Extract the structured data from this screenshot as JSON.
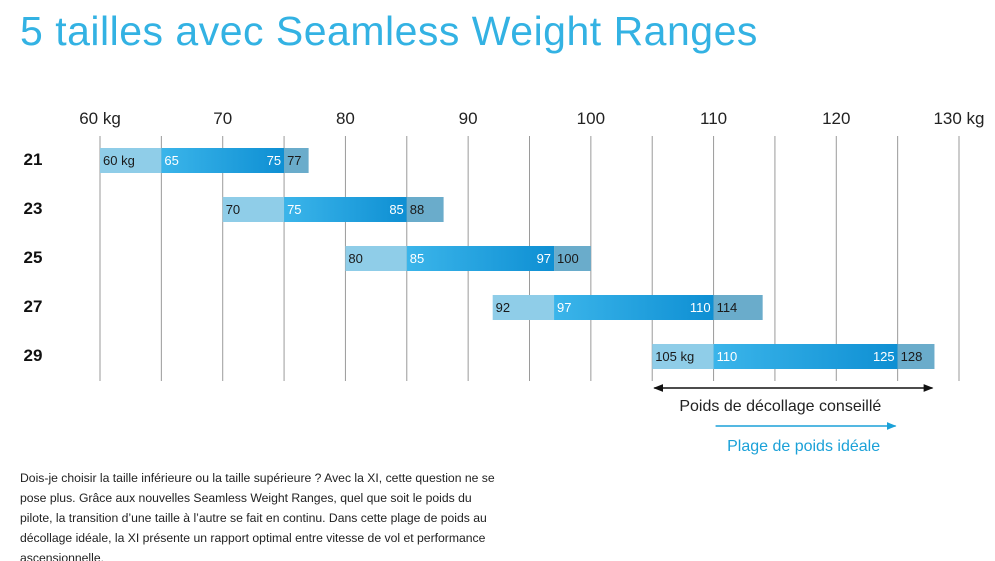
{
  "title": "5 tailles avec Seamless Weight Ranges",
  "chart_data": {
    "type": "bar",
    "orientation": "horizontal-range",
    "xlim": [
      60,
      130
    ],
    "x_ticks": [
      {
        "value": 60,
        "label": "60 kg"
      },
      {
        "value": 70,
        "label": "70"
      },
      {
        "value": 80,
        "label": "80"
      },
      {
        "value": 90,
        "label": "90"
      },
      {
        "value": 100,
        "label": "100"
      },
      {
        "value": 110,
        "label": "110"
      },
      {
        "value": 120,
        "label": "120"
      },
      {
        "value": 130,
        "label": "130 kg"
      }
    ],
    "extra_gridlines": [
      65,
      75,
      85,
      95,
      105,
      115,
      125
    ],
    "sizes": [
      {
        "size": "21",
        "takeoff_min": 60,
        "ideal_min": 65,
        "ideal_max": 75,
        "takeoff_max": 77,
        "labels": {
          "takeoff_min": "60 kg",
          "ideal_min": "65",
          "ideal_max": "75",
          "takeoff_max": "77"
        }
      },
      {
        "size": "23",
        "takeoff_min": 70,
        "ideal_min": 75,
        "ideal_max": 85,
        "takeoff_max": 88,
        "labels": {
          "takeoff_min": "70",
          "ideal_min": "75",
          "ideal_max": "85",
          "takeoff_max": "88"
        }
      },
      {
        "size": "25",
        "takeoff_min": 80,
        "ideal_min": 85,
        "ideal_max": 97,
        "takeoff_max": 100,
        "labels": {
          "takeoff_min": "80",
          "ideal_min": "85",
          "ideal_max": "97",
          "takeoff_max": "100"
        }
      },
      {
        "size": "27",
        "takeoff_min": 92,
        "ideal_min": 97,
        "ideal_max": 110,
        "takeoff_max": 114,
        "labels": {
          "takeoff_min": "92",
          "ideal_min": "97",
          "ideal_max": "110",
          "takeoff_max": "114"
        }
      },
      {
        "size": "29",
        "takeoff_min": 105,
        "ideal_min": 110,
        "ideal_max": 125,
        "takeoff_max": 128,
        "labels": {
          "takeoff_min": "105 kg",
          "ideal_min": "110",
          "ideal_max": "125",
          "takeoff_max": "128"
        }
      }
    ],
    "legend": {
      "takeoff": {
        "label": "Poids de décollage conseillé",
        "from": 105,
        "to": 128
      },
      "ideal": {
        "label": "Plage de poids idéale",
        "from": 110,
        "to": 125
      }
    },
    "colors": {
      "takeoff_low": "#8fcde8",
      "ideal_start": "#3bb5ea",
      "ideal_end": "#0e8fd3",
      "takeoff_high": "#6aaccb",
      "gridline": "#9a9a9a",
      "title": "#33b2e3",
      "ideal_arrow": "#1ba1d8",
      "takeoff_arrow": "#111111"
    }
  },
  "description": "Dois-je choisir la taille inférieure ou la taille supérieure ? Avec la XI, cette question ne se pose plus. Grâce aux nouvelles Seamless Weight Ranges, quel que soit le poids du pilote, la transition d’une taille à l’autre se fait en continu. Dans cette plage de poids au décollage idéale, la XI présente un rapport optimal entre vitesse de vol et performance ascensionnelle."
}
